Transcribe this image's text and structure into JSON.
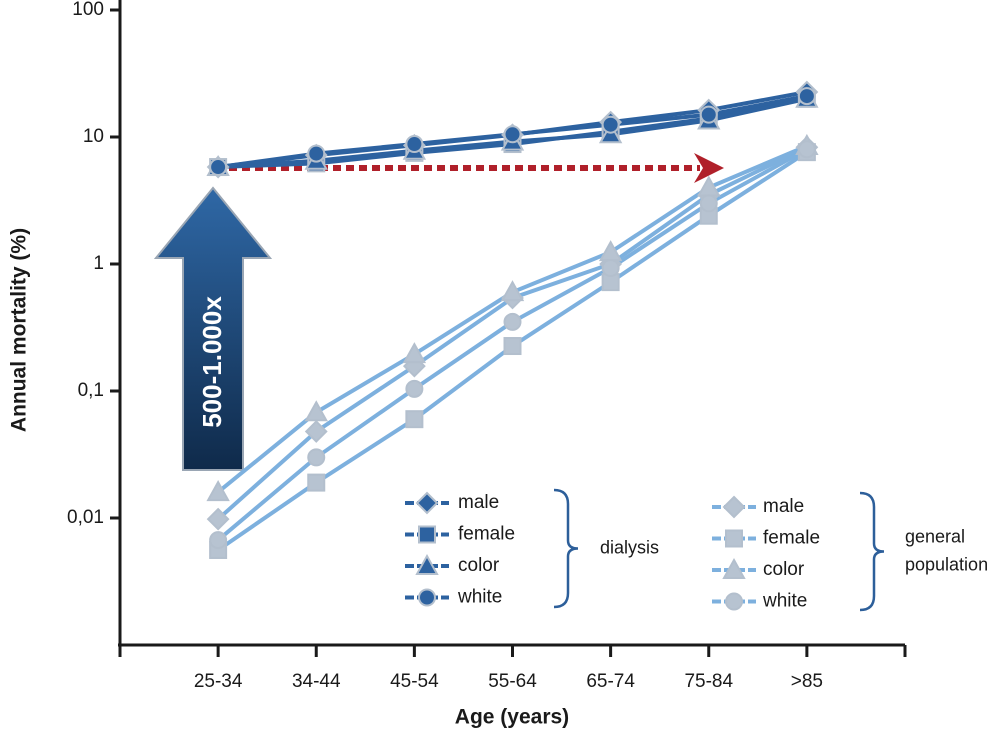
{
  "chart_data": {
    "type": "line",
    "y_label": "Annual mortality (%)",
    "x_label": "Age (years)",
    "annotation": "500-1.000x",
    "categories": [
      "25-34",
      "34-44",
      "45-54",
      "55-64",
      "65-74",
      "75-84",
      ">85"
    ],
    "log_scale": true,
    "ylim": [
      0.001,
      100
    ],
    "yticks": [
      100,
      10,
      1,
      {
        "value": 0.1,
        "label": "0,1"
      },
      {
        "value": 0.01,
        "label": "0,01"
      }
    ],
    "legend_groups": [
      [
        "dialysis"
      ],
      [
        "general",
        "population"
      ]
    ],
    "series": [
      {
        "name": "male",
        "group": 0,
        "marker": "diamond",
        "color": "#2d62a0",
        "marker_color": "#2d62a0",
        "values": [
          5.8,
          7.2,
          8.6,
          10.4,
          13.1,
          16.3,
          22.6
        ]
      },
      {
        "name": "female",
        "group": 0,
        "marker": "square",
        "color": "#2d62a0",
        "marker_color": "#2d62a0",
        "values": [
          5.8,
          6.2,
          7.5,
          8.8,
          11,
          14,
          20
        ]
      },
      {
        "name": "color",
        "group": 0,
        "marker": "triangle",
        "color": "#2d62a0",
        "marker_color": "#2d62a0",
        "values": [
          5.8,
          6.5,
          7.8,
          9.2,
          10.5,
          13.5,
          20
        ]
      },
      {
        "name": "white",
        "group": 0,
        "marker": "circle",
        "color": "#2d62a0",
        "marker_color": "#2d62a0",
        "values": [
          5.8,
          7.4,
          8.8,
          10.5,
          12.5,
          15,
          21
        ]
      },
      {
        "name": "male",
        "group": 1,
        "marker": "diamond",
        "color": "#7db0de",
        "marker_color": "#b7c3d1",
        "values": [
          0.0098,
          0.048,
          0.157,
          0.54,
          1.0,
          3.5,
          8.3
        ]
      },
      {
        "name": "female",
        "group": 1,
        "marker": "square",
        "color": "#7db0de",
        "marker_color": "#b7c3d1",
        "values": [
          0.0056,
          0.019,
          0.06,
          0.226,
          0.72,
          2.4,
          7.6
        ]
      },
      {
        "name": "color",
        "group": 1,
        "marker": "triangle",
        "color": "#7db0de",
        "marker_color": "#b7c3d1",
        "values": [
          0.016,
          0.068,
          0.195,
          0.6,
          1.24,
          4.0,
          8.5
        ]
      },
      {
        "name": "white",
        "group": 1,
        "marker": "circle",
        "color": "#7db0de",
        "marker_color": "#b7c3d1",
        "values": [
          0.0067,
          0.03,
          0.104,
          0.35,
          0.93,
          3.0,
          8.0
        ]
      }
    ]
  }
}
